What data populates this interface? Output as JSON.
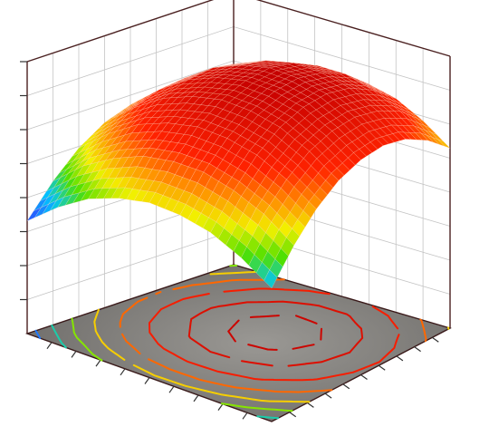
{
  "chart_data": {
    "type": "surface",
    "z": [
      [
        -0.13,
        0.06,
        0.21,
        0.3,
        0.35,
        0.34,
        0.29,
        0.18,
        0.03
      ],
      [
        0.11,
        0.31,
        0.45,
        0.55,
        0.59,
        0.59,
        0.53,
        0.43,
        0.27
      ],
      [
        0.3,
        0.49,
        0.64,
        0.73,
        0.78,
        0.77,
        0.72,
        0.61,
        0.46
      ],
      [
        0.43,
        0.62,
        0.77,
        0.86,
        0.91,
        0.9,
        0.85,
        0.74,
        0.59
      ],
      [
        0.5,
        0.69,
        0.84,
        0.93,
        0.98,
        0.97,
        0.92,
        0.81,
        0.66
      ],
      [
        0.52,
        0.71,
        0.86,
        0.95,
        1.0,
        0.99,
        0.94,
        0.83,
        0.68
      ],
      [
        0.48,
        0.67,
        0.82,
        0.91,
        0.96,
        0.95,
        0.9,
        0.79,
        0.64
      ],
      [
        0.38,
        0.58,
        0.72,
        0.82,
        0.86,
        0.86,
        0.8,
        0.7,
        0.54
      ],
      [
        0.23,
        0.42,
        0.57,
        0.66,
        0.71,
        0.7,
        0.65,
        0.54,
        0.39
      ]
    ],
    "zlim": [
      -1.0,
      1.1
    ],
    "colormap": [
      [
        -0.15,
        "#3a2cff"
      ],
      [
        0.05,
        "#00c4ff"
      ],
      [
        0.2,
        "#4fe000"
      ],
      [
        0.35,
        "#f2f000"
      ],
      [
        0.5,
        "#ff8a00"
      ],
      [
        0.65,
        "#ff2200"
      ],
      [
        1.0,
        "#c40000"
      ]
    ],
    "contour_levels": [
      -0.05,
      0.1,
      0.25,
      0.4,
      0.55,
      0.7,
      0.85,
      0.95
    ],
    "grid": true
  }
}
